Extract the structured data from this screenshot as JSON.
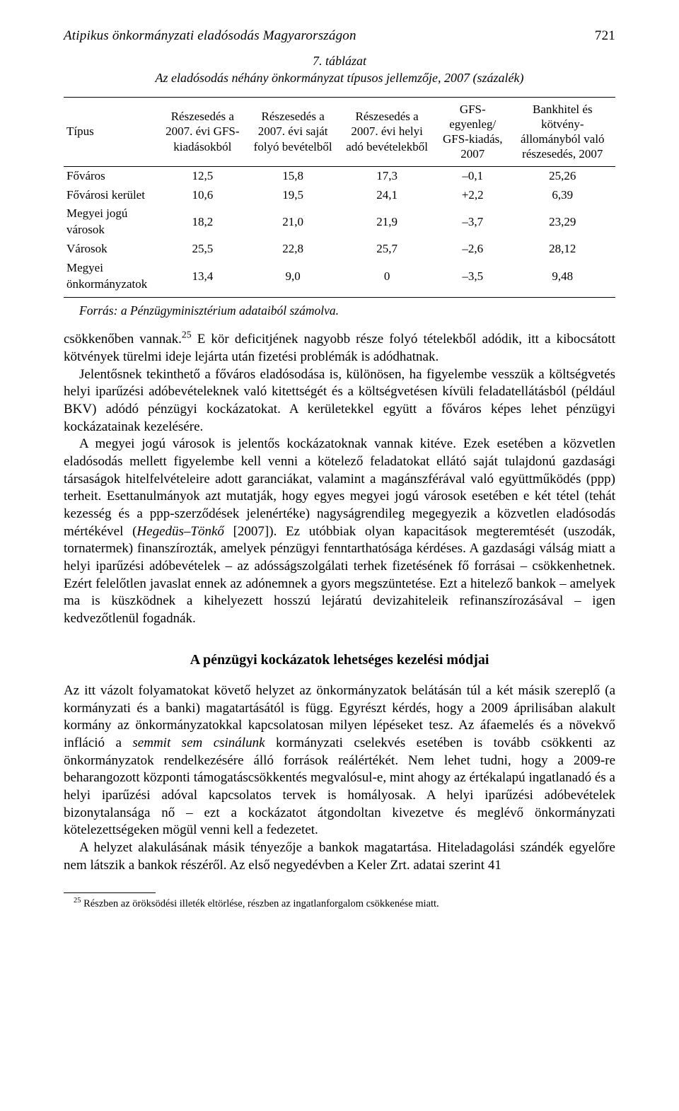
{
  "running": {
    "title": "Atipikus önkormányzati eladósodás Magyarországon",
    "page": "721"
  },
  "table": {
    "type": "table",
    "caption_num": "7. táblázat",
    "caption_text": "Az eladósodás néhány önkormányzat típusos jellemzője, 2007 (százalék)",
    "columns": [
      "Típus",
      "Részesedés a 2007. évi GFS-kiadásokból",
      "Részesedés a 2007. évi saját folyó bevételből",
      "Részesedés a 2007. évi helyi adó bevételekből",
      "GFS-egyenleg/ GFS-kiadás, 2007",
      "Bankhitel és kötvény-állományból való részesedés, 2007"
    ],
    "rows": [
      {
        "label": "Főváros",
        "v": [
          "12,5",
          "15,8",
          "17,3",
          "–0,1",
          "25,26"
        ]
      },
      {
        "label": "Fővárosi kerület",
        "v": [
          "10,6",
          "19,5",
          "24,1",
          "+2,2",
          "6,39"
        ]
      },
      {
        "label": "Megyei jogú városok",
        "v": [
          "18,2",
          "21,0",
          "21,9",
          "–3,7",
          "23,29"
        ]
      },
      {
        "label": "Városok",
        "v": [
          "25,5",
          "22,8",
          "25,7",
          "–2,6",
          "28,12"
        ]
      },
      {
        "label": "Megyei önkormányzatok",
        "v": [
          "13,4",
          "9,0",
          "0",
          "–3,5",
          "9,48"
        ]
      }
    ],
    "source_label": "Forrás:",
    "source_text": " a Pénzügyminisztérium adataiból számolva."
  },
  "para1_pre": "csökkenőben vannak.",
  "para1_sup": "25",
  "para1_post": " E kör deficitjének nagyobb része folyó tételekből adódik, itt a kibocsátott kötvények türelmi ideje lejárta után fizetési problémák is adódhatnak.",
  "para2": "Jelentősnek tekinthető a főváros eladósodása is, különösen, ha figyelembe vesszük a költségvetés helyi iparűzési adóbevételeknek való kitettségét és a költségvetésen kívüli feladatellátásból (például BKV) adódó pénzügyi kockázatokat. A kerületekkel együtt a főváros képes lehet pénzügyi kockázatainak kezelésére.",
  "para3_pre": "A megyei jogú városok is jelentős kockázatoknak vannak kitéve. Ezek esetében a közvetlen eladósodás mellett figyelembe kell venni a kötelező feladatokat ellátó saját tulajdonú gazdasági társaságok hitelfelvételeire adott garanciákat, valamint a magánszférával való együttműködés (ppp) terheit. Esettanulmányok azt mutatják, hogy egyes megyei jogú városok esetében e két tétel (tehát kezesség és a ppp-szerződések jelenértéke) nagyságrendileg megegyezik a közvetlen eladósodás mértékével (",
  "para3_cite": "Hegedüs–Tönkő ",
  "para3_post": "[2007]). Ez utóbbiak olyan kapacitások megteremtését (uszodák, tornatermek) finanszírozták, amelyek pénzügyi fenntarthatósága kérdéses. A gazdasági válság miatt a helyi iparűzési adóbevételek – az adósságszolgálati terhek fizetésének fő forrásai – csökkenhetnek. Ezért felelőtlen javaslat ennek az adónemnek a gyors megszüntetése. Ezt a hitelező bankok – amelyek ma is küszködnek a kihelyezett hosszú lejáratú devizahiteleik refinanszírozásával – igen kedvezőtlenül fogadnák.",
  "section_title": "A pénzügyi kockázatok lehetséges kezelési módjai",
  "para4_a": "Az itt vázolt folyamatokat követő helyzet az önkormányzatok belátásán túl a két másik szereplő (a kormányzati és a banki) magatartásától is függ. Egyrészt kérdés, hogy a 2009 áprilisában alakult kormány az önkormányzatokkal kapcsolatosan milyen lépéseket tesz. Az áfaemelés és a növekvő infláció a ",
  "para4_em": "semmit sem csinálunk",
  "para4_b": " kormányzati cselekvés esetében is tovább csökkenti az önkormányzatok rendelkezésére álló források reálértékét. Nem lehet tudni, hogy a 2009-re beharangozott központi támogatáscsökkentés megvalósul-e, mint ahogy az értékalapú ingatlanadó és a helyi iparűzési adóval kapcsolatos tervek is homályosak. A helyi iparűzési adóbevételek bizonytalansága nő – ezt a kockázatot átgondoltan kivezetve és meglévő önkormányzati kötelezettségeken mögül venni kell a fedezetet.",
  "para5": "A helyzet alakulásának másik tényezője a bankok magatartása. Hiteladagolási szándék egyelőre nem látszik a bankok részéről. Az első negyedévben a Keler Zrt. adatai szerint 41",
  "footnote_sup": "25",
  "footnote_text": " Részben az öröksödési illeték eltörlése, részben az ingatlanforgalom csökkenése miatt."
}
